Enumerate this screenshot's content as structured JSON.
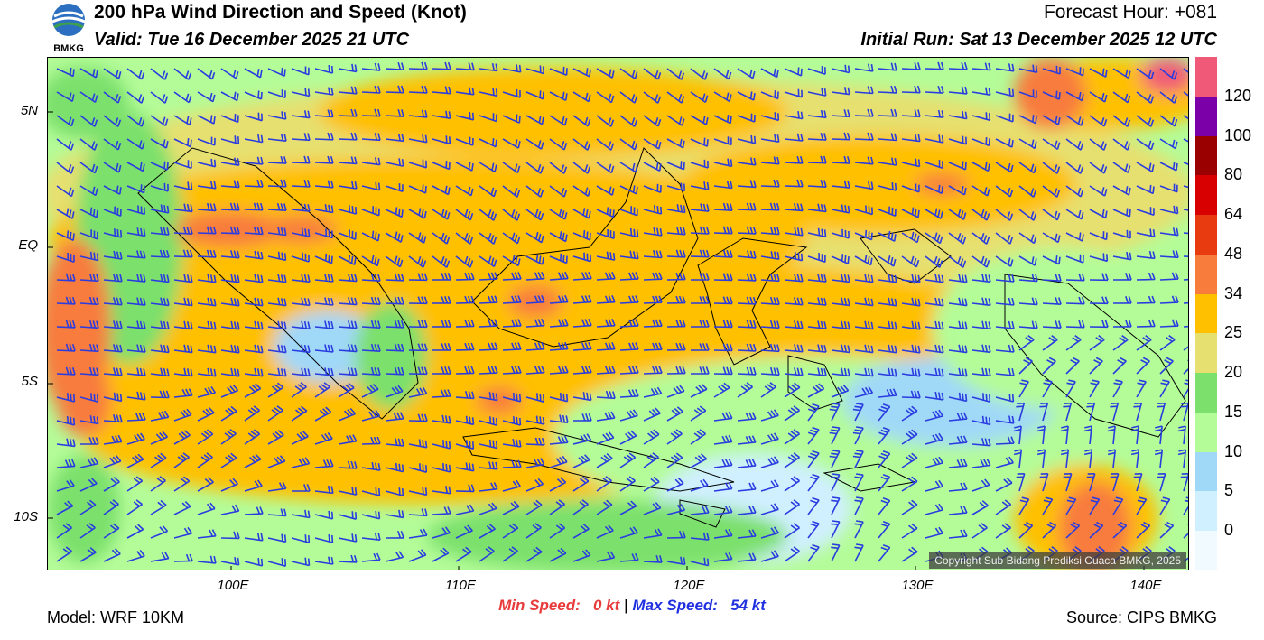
{
  "header": {
    "title": "200 hPa Wind Direction and Speed (Knot)",
    "valid": "Valid: Tue 16 December 2025 21 UTC",
    "forecast_hour": "Forecast Hour: +081",
    "initial_run": "Initial Run: Sat 13 December 2025 12 UTC",
    "logo_text": "BMKG"
  },
  "map": {
    "lat_labels": [
      "5N",
      "EQ",
      "5S",
      "10S"
    ],
    "lon_labels": [
      "100E",
      "110E",
      "120E",
      "130E",
      "140E"
    ],
    "copyright": "Copyright Sub Bidang Prediksi Cuaca BMKG, 2025"
  },
  "legend": {
    "labels": [
      "120",
      "100",
      "80",
      "64",
      "48",
      "34",
      "25",
      "20",
      "15",
      "10",
      "5",
      "0"
    ],
    "colors": [
      "#f05a78",
      "#7b00a8",
      "#9b0000",
      "#d80000",
      "#e83c10",
      "#f87c3c",
      "#ffc000",
      "#e6e070",
      "#7ce06c",
      "#b4fc98",
      "#a0d8f8",
      "#d0f0ff",
      "#f0faff"
    ]
  },
  "footer": {
    "model": "Model: WRF 10KM",
    "min_label": "Min Speed:",
    "min_value": "0 kt",
    "separator": "|",
    "max_label": "Max Speed:",
    "max_value": "54 kt",
    "source": "Source: CIPS BMKG"
  },
  "colors": {
    "min_speed": "#e83c3c",
    "max_speed": "#2030e0",
    "barb": "#2a3ce0"
  }
}
